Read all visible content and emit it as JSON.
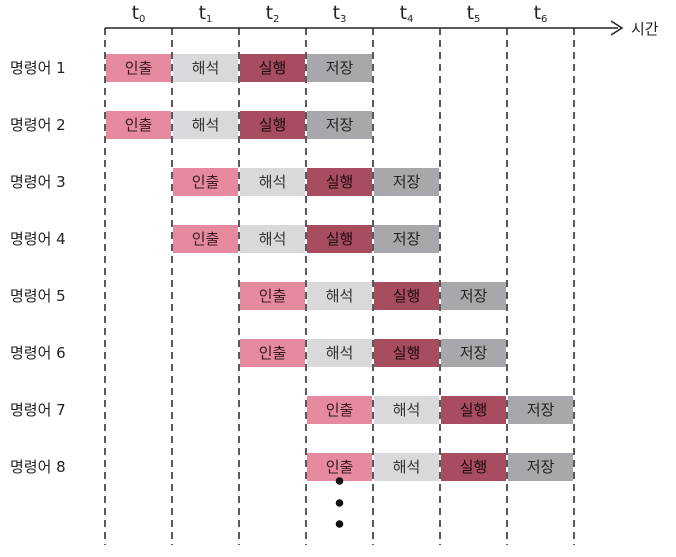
{
  "axis": {
    "label": "시간",
    "ticks": [
      {
        "base": "t",
        "sub": "0"
      },
      {
        "base": "t",
        "sub": "1"
      },
      {
        "base": "t",
        "sub": "2"
      },
      {
        "base": "t",
        "sub": "3"
      },
      {
        "base": "t",
        "sub": "4"
      },
      {
        "base": "t",
        "sub": "5"
      },
      {
        "base": "t",
        "sub": "6"
      }
    ]
  },
  "stages": [
    {
      "key": "fetch",
      "label": "인출",
      "color": "#e58a9f",
      "text_color": "#3a1a22"
    },
    {
      "key": "decode",
      "label": "해석",
      "color": "#d9d9dc",
      "text_color": "#333333"
    },
    {
      "key": "execute",
      "label": "실행",
      "color": "#a84c60",
      "text_color": "#1e0a10"
    },
    {
      "key": "store",
      "label": "저장",
      "color": "#a8a8ac",
      "text_color": "#222222"
    }
  ],
  "rows": [
    {
      "label": "명령어 1",
      "start": 0
    },
    {
      "label": "명령어 2",
      "start": 0
    },
    {
      "label": "명령어 3",
      "start": 1
    },
    {
      "label": "명령어 4",
      "start": 1
    },
    {
      "label": "명령어 5",
      "start": 2
    },
    {
      "label": "명령어 6",
      "start": 2
    },
    {
      "label": "명령어 7",
      "start": 3
    },
    {
      "label": "명령어 8",
      "start": 3
    }
  ],
  "continuation_marker": "⋮"
}
